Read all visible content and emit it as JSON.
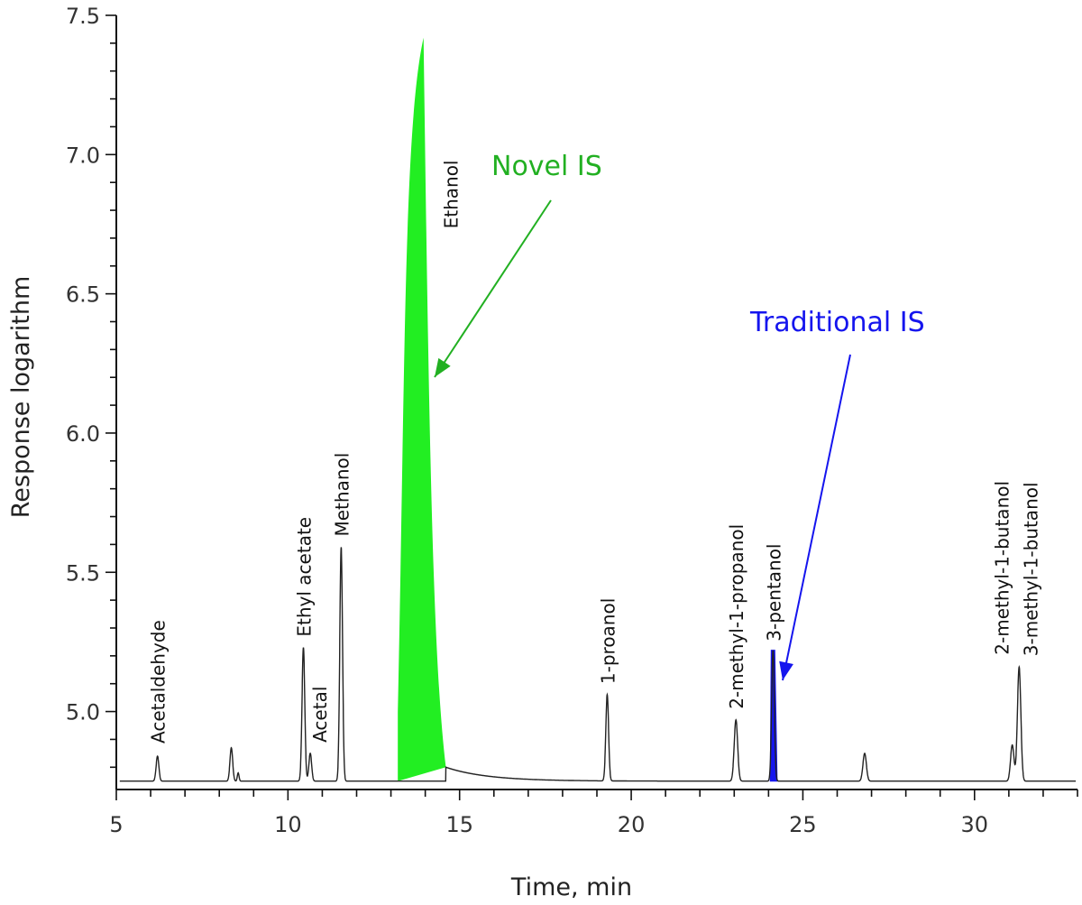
{
  "chart_data": {
    "type": "line",
    "xlabel": "Time, min",
    "ylabel": "Response logarithm",
    "xlim": [
      5,
      33
    ],
    "ylim": [
      4.72,
      7.5
    ],
    "x_ticks": [
      5,
      10,
      15,
      20,
      25,
      30
    ],
    "y_ticks": [
      5.0,
      5.5,
      6.0,
      6.5,
      7.0,
      7.5
    ],
    "y_tick_labels": [
      "5.0",
      "5.5",
      "6.0",
      "6.5",
      "7.0",
      "7.5"
    ],
    "grid": false,
    "baseline": 4.75,
    "line_color": "#222222",
    "peaks": [
      {
        "label": "Acetaldehyde",
        "x": 6.2,
        "y": 4.84
      },
      {
        "label": "",
        "x": 8.35,
        "y": 4.87
      },
      {
        "label": "Ethyl acetate",
        "x": 10.45,
        "y": 5.23
      },
      {
        "label": "Acetal",
        "x": 10.65,
        "y": 4.85
      },
      {
        "label": "Methanol",
        "x": 11.55,
        "y": 5.59
      },
      {
        "label": "1-proanol",
        "x": 19.3,
        "y": 5.06
      },
      {
        "label": "2-methyl-1-propanol",
        "x": 23.05,
        "y": 4.97
      },
      {
        "label": "",
        "x": 26.8,
        "y": 4.85
      },
      {
        "label": "2-methyl-1-butanol",
        "x": 31.1,
        "y": 4.88
      },
      {
        "label": "3-methyl-1-butanol",
        "x": 31.3,
        "y": 5.16
      }
    ],
    "highlighted_peaks": [
      {
        "label": "Ethanol",
        "x_start": 13.2,
        "x_apex": 13.95,
        "x_end": 14.6,
        "y": 7.42,
        "color": "#22ee22",
        "callout": "Novel IS",
        "callout_color": "#22b022"
      },
      {
        "label": "3-pentanol",
        "x_start": 24.05,
        "x_apex": 24.13,
        "x_end": 24.25,
        "y": 5.22,
        "color": "#1515ee",
        "callout": "Traditional IS",
        "callout_color": "#1515ee"
      }
    ]
  }
}
